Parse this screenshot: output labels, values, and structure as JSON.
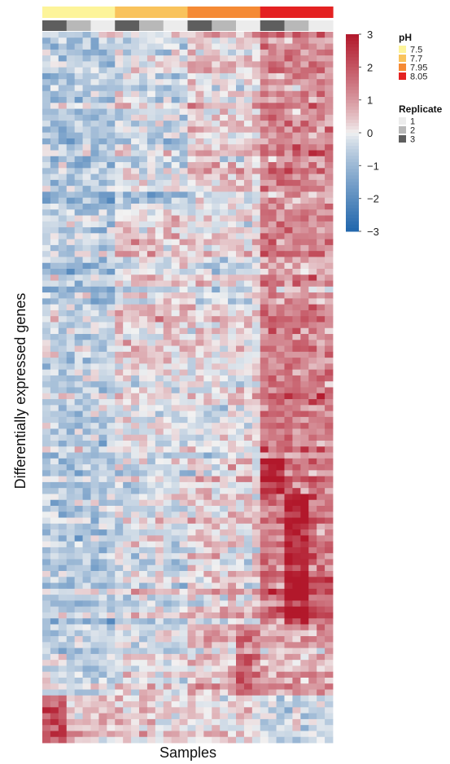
{
  "chart_data": {
    "type": "heatmap",
    "title": "",
    "xlabel": "Samples",
    "ylabel": "Differentially expressed genes",
    "color_scale": {
      "min": -3,
      "max": 3,
      "ticks": [
        3,
        2,
        1,
        0,
        -1,
        -2,
        -3
      ],
      "colors": {
        "low": "#2166ac",
        "mid": "#f2f2f2",
        "high": "#b2182b"
      }
    },
    "samples": [
      {
        "ph": "7.5",
        "replicate": "3"
      },
      {
        "ph": "7.5",
        "replicate": "2"
      },
      {
        "ph": "7.5",
        "replicate": "1"
      },
      {
        "ph": "7.7",
        "replicate": "3"
      },
      {
        "ph": "7.7",
        "replicate": "2"
      },
      {
        "ph": "7.7",
        "replicate": "1"
      },
      {
        "ph": "7.95",
        "replicate": "3"
      },
      {
        "ph": "7.95",
        "replicate": "2"
      },
      {
        "ph": "7.95",
        "replicate": "1"
      },
      {
        "ph": "8.05",
        "replicate": "3"
      },
      {
        "ph": "8.05",
        "replicate": "2"
      },
      {
        "ph": "8.05",
        "replicate": "1"
      }
    ],
    "legend": {
      "ph": {
        "title": "pH",
        "entries": [
          {
            "label": "7.5",
            "color": "#fdf49a"
          },
          {
            "label": "7.7",
            "color": "#f9c35c"
          },
          {
            "label": "7.95",
            "color": "#f58a35"
          },
          {
            "label": "8.05",
            "color": "#e42222"
          }
        ]
      },
      "replicate": {
        "title": "Replicate",
        "entries": [
          {
            "label": "1",
            "color": "#ececec"
          },
          {
            "label": "2",
            "color": "#b8b8b8"
          },
          {
            "label": "3",
            "color": "#5e5e5e"
          }
        ]
      }
    },
    "gene_count": 120,
    "sample_columns": 36,
    "pattern_note_values": {
      "block_profiles": [
        {
          "rows": [
            0,
            30
          ],
          "ph_mean": [
            -0.6,
            -0.2,
            0.4,
            1.3
          ]
        },
        {
          "rows": [
            30,
            58
          ],
          "ph_mean": [
            -0.5,
            0.3,
            0.1,
            1.2
          ]
        },
        {
          "rows": [
            58,
            72
          ],
          "ph_mean": [
            -0.4,
            0.0,
            0.0,
            1.5
          ]
        },
        {
          "rows": [
            72,
            100
          ],
          "ph_mean": [
            -0.6,
            -0.2,
            0.3,
            1.6
          ]
        },
        {
          "rows": [
            100,
            112
          ],
          "ph_mean": [
            -0.4,
            0.0,
            0.7,
            0.8
          ]
        },
        {
          "rows": [
            112,
            120
          ],
          "ph_mean": [
            0.6,
            0.4,
            0.2,
            -0.4
          ]
        }
      ]
    }
  }
}
